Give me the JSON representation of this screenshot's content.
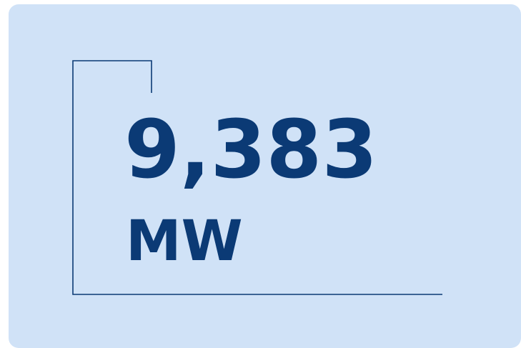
{
  "stat": {
    "value": "9,383",
    "unit": "MW"
  }
}
